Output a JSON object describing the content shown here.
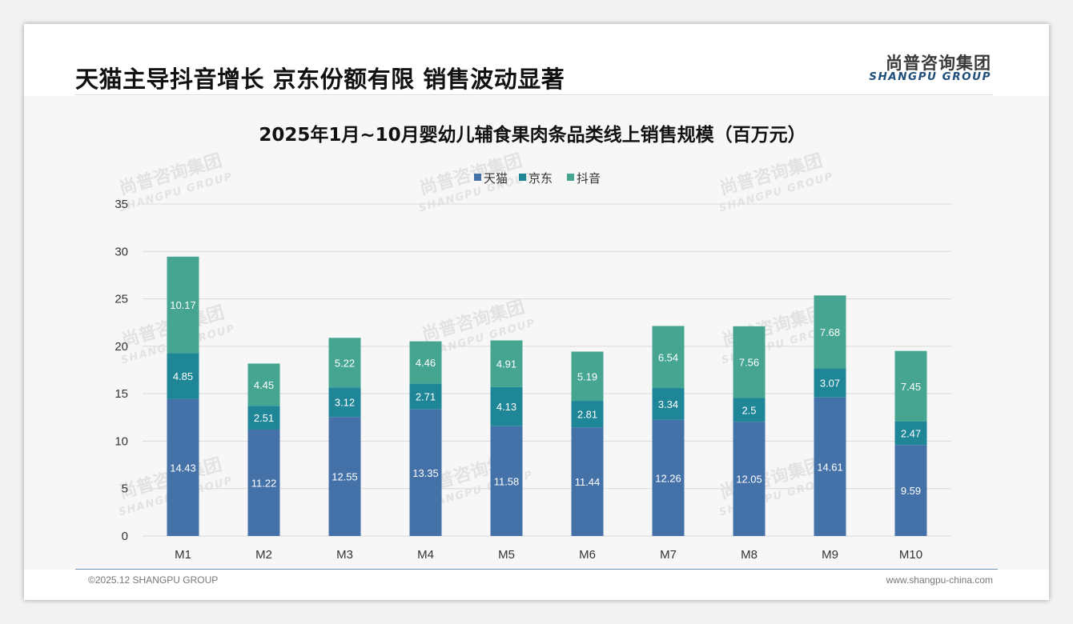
{
  "header": {
    "title": "天猫主导抖音增长 京东份额有限 销售波动显著",
    "brand_cn": "尚普咨询集团",
    "brand_en": "SHANGPU GROUP"
  },
  "watermark": {
    "cn": "尚普咨询集团",
    "en": "SHANGPU GROUP"
  },
  "footer": {
    "copyright": "©2025.12 SHANGPU GROUP",
    "website": "www.shangpu-china.com"
  },
  "colors": {
    "tmall": "#4472a8",
    "jd": "#1f8698",
    "douyin": "#45a590",
    "grid": "#d9d9d9",
    "axis_text": "#333333"
  },
  "chart_data": {
    "type": "bar",
    "stacked": true,
    "title": "2025年1月~10月婴幼儿辅食果肉条品类线上销售规模（百万元）",
    "xlabel": "",
    "ylabel": "",
    "ylim": [
      0,
      35
    ],
    "yticks": [
      0,
      5,
      10,
      15,
      20,
      25,
      30,
      35
    ],
    "legend_position": "top-center",
    "grid": true,
    "categories": [
      "M1",
      "M2",
      "M3",
      "M4",
      "M5",
      "M6",
      "M7",
      "M8",
      "M9",
      "M10"
    ],
    "series": [
      {
        "name": "天猫",
        "color_key": "tmall",
        "values": [
          14.43,
          11.22,
          12.55,
          13.35,
          11.58,
          11.44,
          12.26,
          12.05,
          14.61,
          9.59
        ]
      },
      {
        "name": "京东",
        "color_key": "jd",
        "values": [
          4.85,
          2.51,
          3.12,
          2.71,
          4.13,
          2.81,
          3.34,
          2.5,
          3.07,
          2.47
        ]
      },
      {
        "name": "抖音",
        "color_key": "douyin",
        "values": [
          10.17,
          4.45,
          5.22,
          4.46,
          4.91,
          5.19,
          6.54,
          7.56,
          7.68,
          7.45
        ]
      }
    ]
  }
}
